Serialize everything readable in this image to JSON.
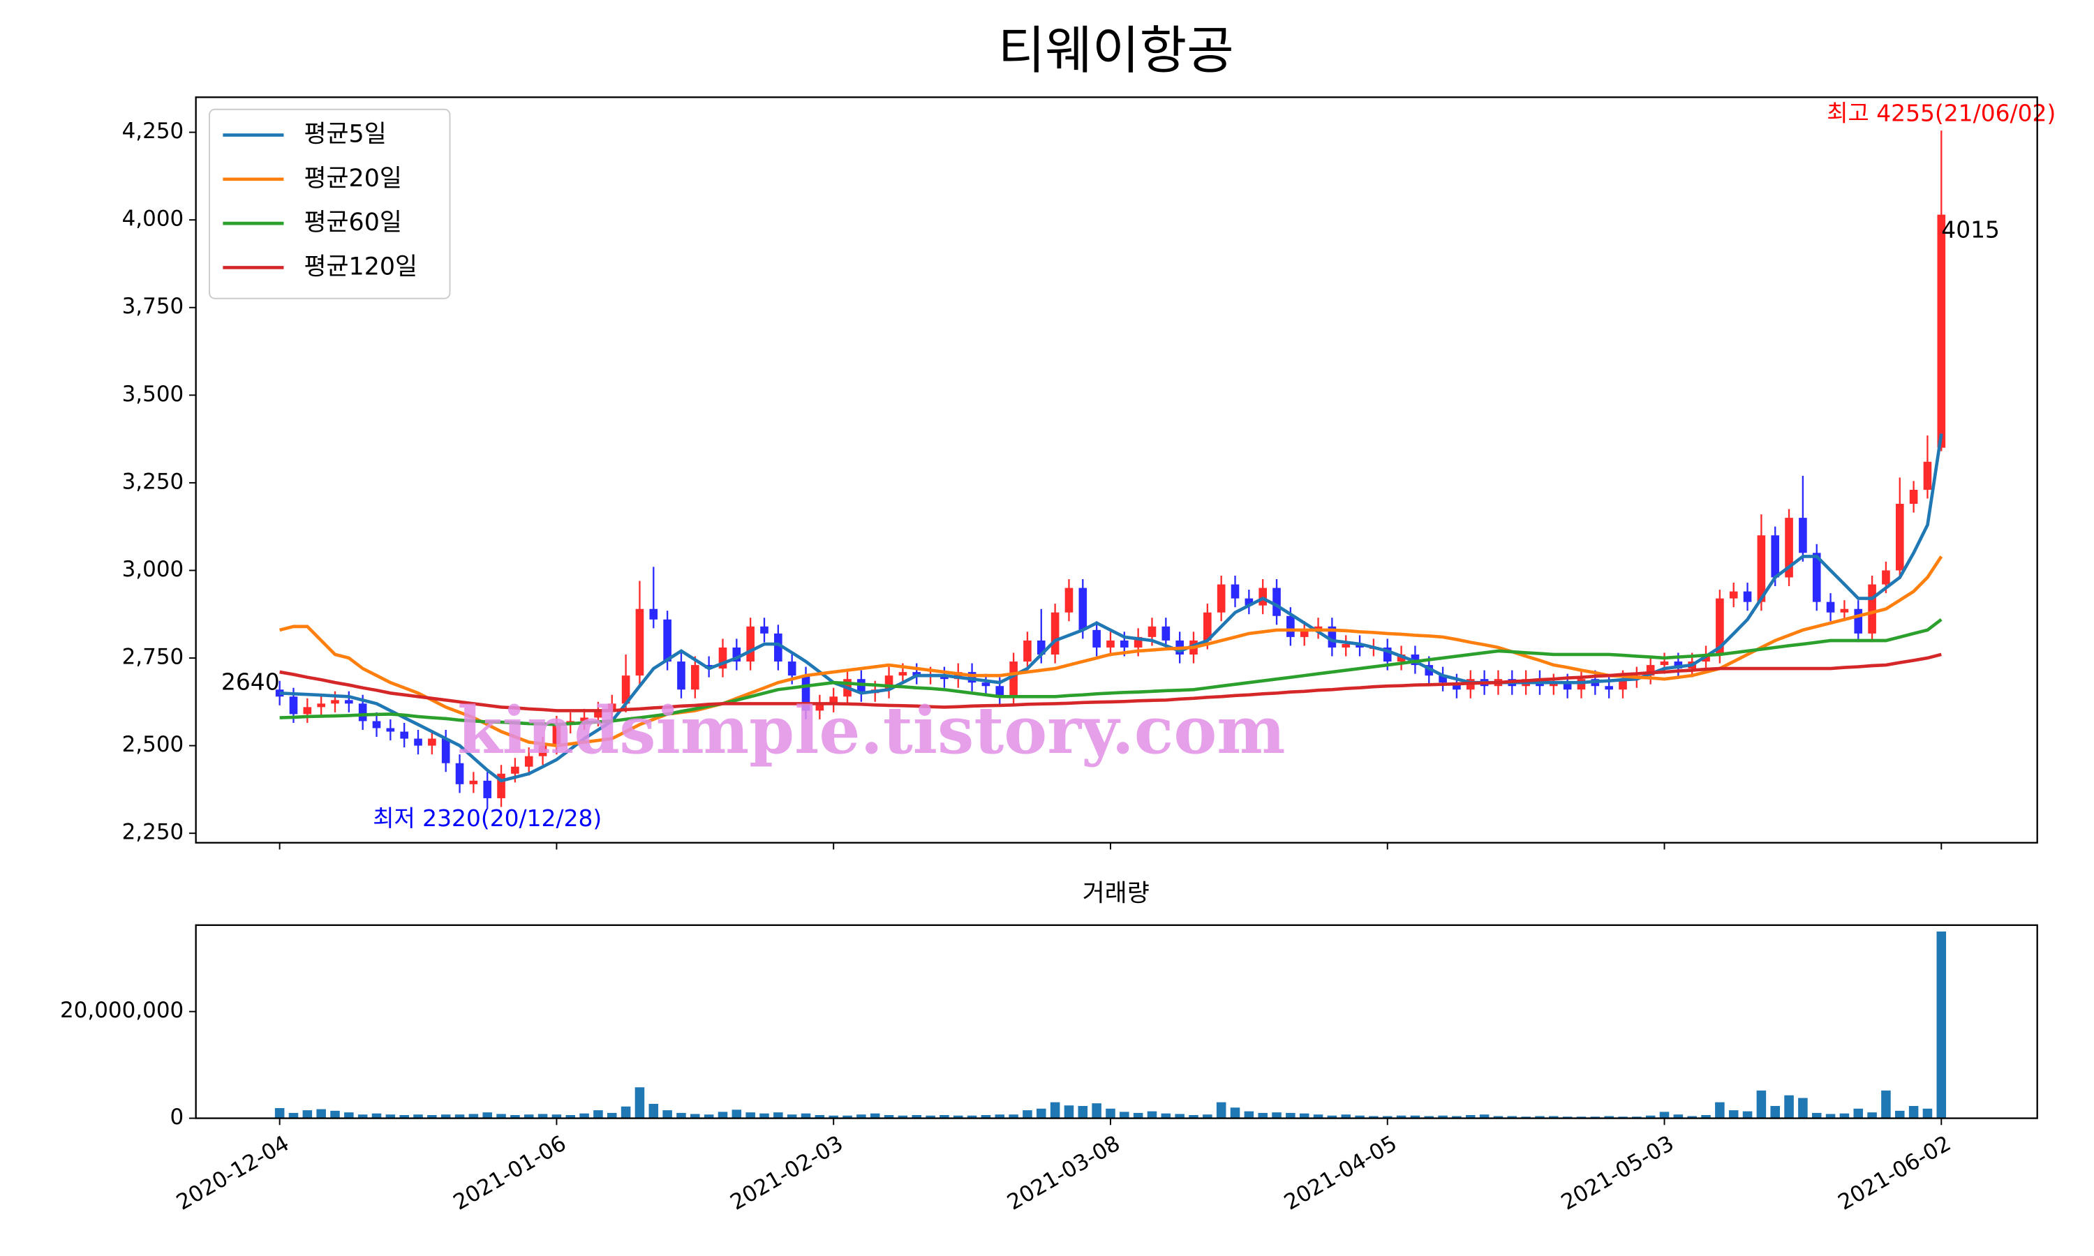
{
  "chart_data": {
    "type": "candlestick",
    "title": "티웨이항공",
    "watermark": "kindsimple.tistory.com",
    "annotations": [
      "2640",
      "4015",
      "최고 4255(21/06/02)",
      "최저 2320(20/12/28)"
    ],
    "categories": [
      "2020-12-04",
      null,
      null,
      null,
      null,
      null,
      null,
      null,
      null,
      null,
      null,
      null,
      null,
      null,
      null,
      null,
      null,
      null,
      null,
      null,
      "2021-01-06",
      null,
      null,
      null,
      null,
      null,
      null,
      null,
      null,
      null,
      null,
      null,
      null,
      null,
      null,
      null,
      null,
      null,
      null,
      null,
      "2021-02-03",
      null,
      null,
      null,
      null,
      null,
      null,
      null,
      null,
      null,
      null,
      null,
      null,
      null,
      null,
      null,
      null,
      null,
      null,
      null,
      "2021-03-08",
      null,
      null,
      null,
      null,
      null,
      null,
      null,
      null,
      null,
      null,
      null,
      null,
      null,
      null,
      null,
      null,
      null,
      null,
      null,
      "2021-04-05",
      null,
      null,
      null,
      null,
      null,
      null,
      null,
      null,
      null,
      null,
      null,
      null,
      null,
      null,
      null,
      null,
      null,
      null,
      null,
      "2021-05-03",
      null,
      null,
      null,
      null,
      null,
      null,
      null,
      null,
      null,
      null,
      null,
      null,
      null,
      null,
      null,
      null,
      null,
      null,
      null,
      "2021-06-02"
    ],
    "open": [
      2660,
      2640,
      2590,
      2610,
      2620,
      2630,
      2620,
      2570,
      2550,
      2540,
      2520,
      2500,
      2520,
      2450,
      2390,
      2400,
      2350,
      2420,
      2440,
      2470,
      2500,
      2560,
      2570,
      2580,
      2600,
      2620,
      2700,
      2890,
      2860,
      2740,
      2660,
      2730,
      2720,
      2780,
      2740,
      2840,
      2820,
      2740,
      2700,
      2600,
      2620,
      2640,
      2690,
      2650,
      2660,
      2700,
      2710,
      2700,
      2700,
      2690,
      2710,
      2680,
      2670,
      2640,
      2740,
      2800,
      2760,
      2880,
      2950,
      2830,
      2780,
      2800,
      2780,
      2810,
      2840,
      2800,
      2760,
      2800,
      2880,
      2960,
      2920,
      2900,
      2950,
      2870,
      2810,
      2830,
      2840,
      2780,
      2790,
      2780,
      2780,
      2740,
      2760,
      2730,
      2700,
      2680,
      2660,
      2690,
      2670,
      2690,
      2670,
      2690,
      2670,
      2680,
      2660,
      2690,
      2670,
      2660,
      2690,
      2700,
      2730,
      2740,
      2720,
      2740,
      2760,
      2920,
      2940,
      2910,
      3100,
      2980,
      3150,
      3050,
      2910,
      2880,
      2890,
      2820,
      2960,
      3000,
      3190,
      3230,
      3350
    ],
    "high": [
      2685,
      2665,
      2635,
      2645,
      2655,
      2655,
      2645,
      2595,
      2575,
      2565,
      2545,
      2545,
      2545,
      2475,
      2425,
      2425,
      2445,
      2465,
      2495,
      2525,
      2585,
      2595,
      2605,
      2625,
      2645,
      2760,
      2970,
      3010,
      2885,
      2765,
      2755,
      2755,
      2805,
      2805,
      2865,
      2865,
      2845,
      2765,
      2725,
      2645,
      2665,
      2715,
      2715,
      2685,
      2725,
      2735,
      2735,
      2725,
      2725,
      2735,
      2735,
      2705,
      2695,
      2765,
      2825,
      2890,
      2905,
      2975,
      2975,
      2855,
      2825,
      2825,
      2835,
      2865,
      2865,
      2825,
      2825,
      2905,
      2985,
      2985,
      2945,
      2975,
      2975,
      2895,
      2855,
      2865,
      2865,
      2815,
      2815,
      2805,
      2805,
      2785,
      2785,
      2755,
      2725,
      2705,
      2715,
      2715,
      2715,
      2715,
      2715,
      2715,
      2705,
      2705,
      2715,
      2715,
      2695,
      2715,
      2725,
      2755,
      2765,
      2765,
      2765,
      2785,
      2945,
      2965,
      2965,
      3160,
      3125,
      3175,
      3270,
      3075,
      2935,
      2915,
      2915,
      2985,
      3025,
      3265,
      3255,
      3385,
      4255
    ],
    "low": [
      2615,
      2565,
      2565,
      2585,
      2595,
      2595,
      2545,
      2525,
      2515,
      2495,
      2475,
      2475,
      2425,
      2365,
      2365,
      2320,
      2325,
      2395,
      2415,
      2445,
      2475,
      2535,
      2545,
      2555,
      2575,
      2595,
      2675,
      2835,
      2715,
      2635,
      2635,
      2695,
      2695,
      2715,
      2715,
      2795,
      2715,
      2675,
      2575,
      2575,
      2595,
      2615,
      2625,
      2625,
      2635,
      2675,
      2675,
      2675,
      2665,
      2665,
      2655,
      2645,
      2615,
      2615,
      2715,
      2735,
      2735,
      2855,
      2805,
      2755,
      2755,
      2755,
      2755,
      2785,
      2775,
      2735,
      2735,
      2775,
      2855,
      2895,
      2875,
      2875,
      2845,
      2785,
      2785,
      2805,
      2755,
      2755,
      2755,
      2755,
      2715,
      2715,
      2705,
      2675,
      2655,
      2635,
      2635,
      2645,
      2645,
      2645,
      2645,
      2645,
      2645,
      2635,
      2635,
      2645,
      2635,
      2635,
      2665,
      2675,
      2705,
      2695,
      2695,
      2715,
      2735,
      2895,
      2885,
      2885,
      2955,
      2955,
      3025,
      2885,
      2855,
      2855,
      2795,
      2795,
      2935,
      2975,
      3165,
      3205,
      3340
    ],
    "close": [
      2640,
      2590,
      2610,
      2620,
      2630,
      2620,
      2570,
      2550,
      2540,
      2520,
      2500,
      2520,
      2450,
      2390,
      2400,
      2350,
      2420,
      2440,
      2470,
      2500,
      2560,
      2570,
      2580,
      2600,
      2620,
      2700,
      2890,
      2860,
      2740,
      2660,
      2730,
      2720,
      2780,
      2740,
      2840,
      2820,
      2740,
      2700,
      2600,
      2620,
      2640,
      2690,
      2650,
      2660,
      2700,
      2710,
      2700,
      2700,
      2690,
      2710,
      2680,
      2670,
      2640,
      2740,
      2800,
      2760,
      2880,
      2950,
      2830,
      2780,
      2800,
      2780,
      2810,
      2840,
      2800,
      2760,
      2800,
      2880,
      2960,
      2920,
      2900,
      2950,
      2870,
      2810,
      2830,
      2840,
      2780,
      2790,
      2780,
      2780,
      2740,
      2760,
      2730,
      2700,
      2680,
      2660,
      2690,
      2670,
      2690,
      2670,
      2690,
      2670,
      2680,
      2660,
      2690,
      2670,
      2660,
      2690,
      2700,
      2730,
      2740,
      2720,
      2740,
      2760,
      2920,
      2940,
      2910,
      3100,
      2980,
      3150,
      3050,
      2910,
      2880,
      2890,
      2820,
      2960,
      3000,
      3190,
      3230,
      3310,
      4015
    ],
    "up_color": "#ff2a2a",
    "down_color": "#2a2aff",
    "series": [
      {
        "name": "평균5일",
        "color": "#1f77b4",
        "values": [
          2650,
          2648,
          2646,
          2644,
          2642,
          2640,
          2630,
          2620,
          2600,
          2580,
          2560,
          2540,
          2520,
          2500,
          2465,
          2430,
          2400,
          2410,
          2420,
          2440,
          2460,
          2490,
          2520,
          2545,
          2570,
          2620,
          2670,
          2720,
          2745,
          2770,
          2745,
          2720,
          2735,
          2750,
          2770,
          2790,
          2790,
          2765,
          2740,
          2710,
          2680,
          2665,
          2650,
          2655,
          2660,
          2680,
          2700,
          2700,
          2700,
          2695,
          2690,
          2685,
          2680,
          2700,
          2720,
          2760,
          2800,
          2815,
          2830,
          2850,
          2830,
          2810,
          2805,
          2800,
          2785,
          2770,
          2785,
          2800,
          2840,
          2880,
          2900,
          2920,
          2900,
          2875,
          2850,
          2825,
          2800,
          2795,
          2790,
          2780,
          2770,
          2755,
          2740,
          2720,
          2700,
          2690,
          2680,
          2680,
          2680,
          2680,
          2680,
          2680,
          2680,
          2680,
          2680,
          2683,
          2685,
          2688,
          2690,
          2705,
          2720,
          2725,
          2730,
          2755,
          2780,
          2820,
          2860,
          2920,
          2980,
          3010,
          3040,
          3040,
          3000,
          2960,
          2920,
          2920,
          2950,
          2980,
          3050,
          3130,
          3390
        ]
      },
      {
        "name": "평균20일",
        "color": "#ff7f0e",
        "values": [
          2830,
          2840,
          2840,
          2800,
          2760,
          2750,
          2720,
          2700,
          2680,
          2665,
          2650,
          2630,
          2610,
          2595,
          2580,
          2560,
          2540,
          2525,
          2510,
          2505,
          2500,
          2505,
          2510,
          2515,
          2520,
          2540,
          2560,
          2575,
          2590,
          2595,
          2600,
          2610,
          2620,
          2635,
          2650,
          2665,
          2680,
          2690,
          2700,
          2705,
          2710,
          2715,
          2720,
          2725,
          2730,
          2725,
          2720,
          2715,
          2710,
          2705,
          2700,
          2700,
          2700,
          2705,
          2710,
          2715,
          2720,
          2730,
          2740,
          2750,
          2760,
          2765,
          2770,
          2773,
          2776,
          2778,
          2780,
          2790,
          2800,
          2810,
          2820,
          2825,
          2830,
          2830,
          2830,
          2830,
          2830,
          2828,
          2825,
          2823,
          2820,
          2818,
          2815,
          2813,
          2810,
          2803,
          2795,
          2788,
          2780,
          2768,
          2755,
          2743,
          2730,
          2723,
          2715,
          2708,
          2700,
          2698,
          2695,
          2693,
          2690,
          2695,
          2700,
          2710,
          2720,
          2740,
          2760,
          2780,
          2800,
          2815,
          2830,
          2840,
          2850,
          2860,
          2870,
          2880,
          2890,
          2915,
          2940,
          2980,
          3040
        ]
      },
      {
        "name": "평균60일",
        "color": "#2ca02c",
        "values": [
          2580,
          2581,
          2583,
          2584,
          2585,
          2586,
          2588,
          2589,
          2590,
          2587,
          2583,
          2580,
          2577,
          2573,
          2570,
          2568,
          2567,
          2565,
          2563,
          2562,
          2560,
          2563,
          2565,
          2568,
          2570,
          2575,
          2580,
          2585,
          2590,
          2598,
          2605,
          2613,
          2620,
          2630,
          2640,
          2650,
          2660,
          2665,
          2670,
          2675,
          2680,
          2678,
          2675,
          2673,
          2670,
          2668,
          2665,
          2663,
          2660,
          2655,
          2650,
          2645,
          2640,
          2640,
          2640,
          2640,
          2640,
          2643,
          2645,
          2648,
          2650,
          2652,
          2653,
          2655,
          2657,
          2658,
          2660,
          2665,
          2670,
          2675,
          2680,
          2685,
          2690,
          2695,
          2700,
          2705,
          2710,
          2715,
          2720,
          2725,
          2730,
          2735,
          2740,
          2745,
          2750,
          2755,
          2760,
          2765,
          2770,
          2768,
          2765,
          2763,
          2760,
          2760,
          2760,
          2760,
          2760,
          2758,
          2755,
          2753,
          2750,
          2753,
          2755,
          2758,
          2760,
          2765,
          2770,
          2775,
          2780,
          2785,
          2790,
          2795,
          2800,
          2800,
          2800,
          2800,
          2800,
          2810,
          2820,
          2830,
          2860
        ]
      },
      {
        "name": "평균120일",
        "color": "#d62728",
        "values": [
          2710,
          2703,
          2695,
          2688,
          2680,
          2673,
          2665,
          2658,
          2650,
          2645,
          2640,
          2635,
          2630,
          2625,
          2620,
          2615,
          2610,
          2608,
          2605,
          2603,
          2600,
          2600,
          2600,
          2600,
          2600,
          2603,
          2605,
          2608,
          2610,
          2613,
          2615,
          2618,
          2620,
          2620,
          2620,
          2620,
          2620,
          2620,
          2620,
          2620,
          2620,
          2619,
          2618,
          2616,
          2615,
          2614,
          2613,
          2611,
          2610,
          2611,
          2613,
          2614,
          2615,
          2616,
          2618,
          2619,
          2620,
          2621,
          2623,
          2624,
          2625,
          2626,
          2628,
          2629,
          2630,
          2633,
          2635,
          2638,
          2640,
          2643,
          2645,
          2648,
          2650,
          2653,
          2655,
          2658,
          2660,
          2663,
          2665,
          2668,
          2670,
          2671,
          2673,
          2674,
          2675,
          2676,
          2678,
          2679,
          2680,
          2683,
          2685,
          2688,
          2690,
          2693,
          2695,
          2698,
          2700,
          2703,
          2705,
          2708,
          2710,
          2713,
          2715,
          2718,
          2720,
          2720,
          2720,
          2720,
          2720,
          2720,
          2720,
          2720,
          2720,
          2723,
          2725,
          2728,
          2730,
          2737,
          2743,
          2750,
          2760
        ]
      }
    ],
    "legend": "upper left",
    "ylim": [
      2223,
      4350
    ],
    "yticks": [
      {
        "value": 2250,
        "label": "2,250"
      },
      {
        "value": 2500,
        "label": "2,500"
      },
      {
        "value": 2750,
        "label": "2,750"
      },
      {
        "value": 3000,
        "label": "3,000"
      },
      {
        "value": 3250,
        "label": "3,250"
      },
      {
        "value": 3500,
        "label": "3,500"
      },
      {
        "value": 3750,
        "label": "3,750"
      },
      {
        "value": 4000,
        "label": "4,000"
      },
      {
        "value": 4250,
        "label": "4,250"
      }
    ],
    "volume": {
      "title": "거래량",
      "color": "#1f77b4",
      "values": [
        1900000,
        1000000,
        1500000,
        1700000,
        1400000,
        1100000,
        700000,
        900000,
        700000,
        600000,
        700000,
        600000,
        700000,
        700000,
        800000,
        1100000,
        800000,
        600000,
        700000,
        800000,
        700000,
        600000,
        900000,
        1500000,
        1000000,
        2200000,
        5800000,
        2700000,
        1500000,
        1000000,
        800000,
        700000,
        1200000,
        1600000,
        1100000,
        900000,
        1100000,
        700000,
        900000,
        600000,
        500000,
        500000,
        700000,
        900000,
        600000,
        500000,
        600000,
        500000,
        600000,
        500000,
        500000,
        600000,
        700000,
        700000,
        1500000,
        1800000,
        3000000,
        2400000,
        2300000,
        2800000,
        1800000,
        1200000,
        1000000,
        1300000,
        900000,
        800000,
        600000,
        700000,
        3000000,
        2000000,
        1300000,
        1000000,
        1100000,
        1000000,
        900000,
        700000,
        500000,
        700000,
        500000,
        400000,
        400000,
        500000,
        500000,
        400000,
        500000,
        400000,
        600000,
        700000,
        400000,
        400000,
        300000,
        400000,
        400000,
        300000,
        300000,
        300000,
        400000,
        300000,
        300000,
        500000,
        1200000,
        700000,
        400000,
        600000,
        3000000,
        1500000,
        1300000,
        5200000,
        2300000,
        4300000,
        3800000,
        1000000,
        800000,
        900000,
        1800000,
        1100000,
        5200000,
        1400000,
        2300000,
        1800000,
        35000000
      ],
      "ylim": [
        0,
        36200000
      ],
      "yticks": [
        0,
        {
          "value": 20000000,
          "label": "20,000,000"
        }
      ]
    }
  }
}
